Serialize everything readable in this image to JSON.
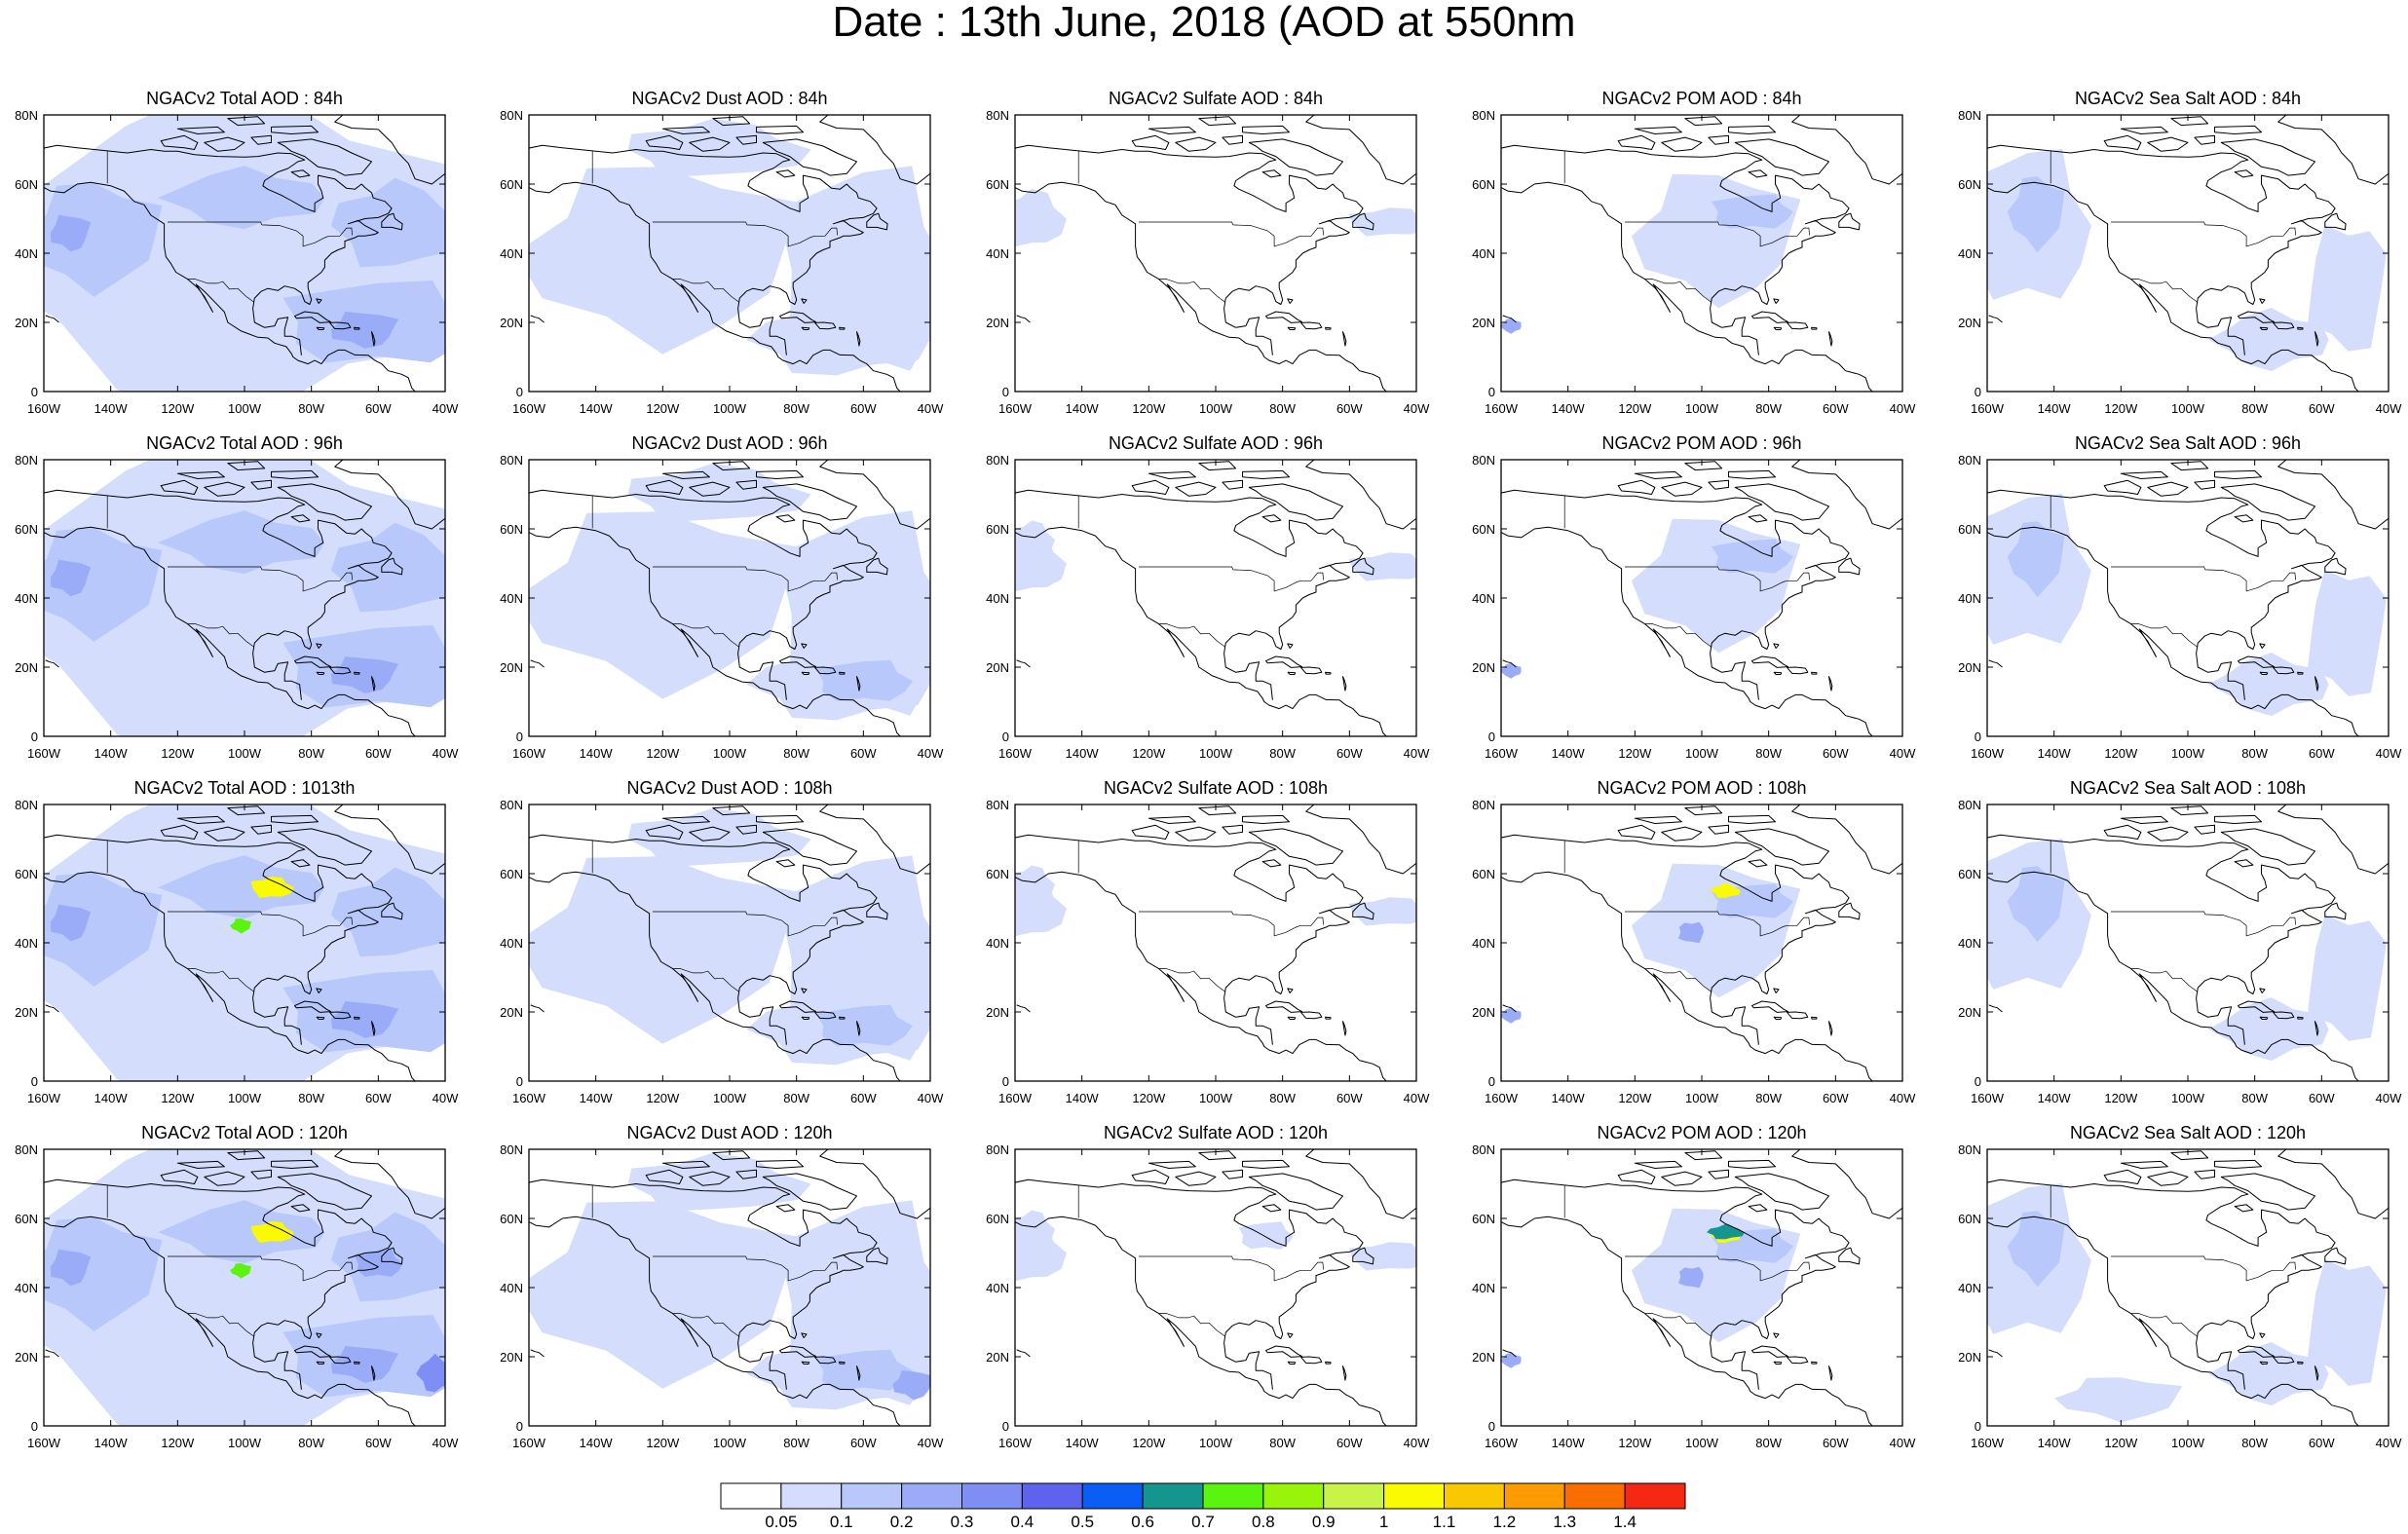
{
  "title": "Date : 13th June, 2018 (AOD at 550nm",
  "panels": [
    [
      "NGACv2 Total AOD : 84h",
      "NGACv2 Dust AOD : 84h",
      "NGACv2 Sulfate AOD : 84h",
      "NGACv2 POM AOD : 84h",
      "NGACv2 Sea Salt AOD : 84h"
    ],
    [
      "NGACv2 Total AOD : 96h",
      "NGACv2 Dust AOD : 96h",
      "NGACv2 Sulfate AOD : 96h",
      "NGACv2 POM AOD : 96h",
      "NGACv2 Sea Salt AOD : 96h"
    ],
    [
      "NGACv2 Total AOD : 1013th",
      "NGACv2 Dust AOD : 108h",
      "NGACv2 Sulfate AOD : 108h",
      "NGACv2 POM AOD : 108h",
      "NGACv2 Sea Salt AOD : 108h"
    ],
    [
      "NGACv2 Total AOD : 120h",
      "NGACv2 Dust AOD : 120h",
      "NGACv2 Sulfate AOD : 120h",
      "NGACv2 POM AOD : 120h",
      "NGACv2 Sea Salt  AOD : 120h"
    ]
  ],
  "chart_data": {
    "type": "heatmap",
    "title": "Date : 13th June, 2018 (AOD at 550nm",
    "map_projection": "cylindrical equidistant",
    "x_ticks": [
      "160W",
      "140W",
      "120W",
      "100W",
      "80W",
      "60W",
      "40W"
    ],
    "y_ticks": [
      "0",
      "20N",
      "40N",
      "60N",
      "80N"
    ],
    "xlim": [
      -160,
      -40
    ],
    "ylim": [
      0,
      80
    ],
    "colorbar": {
      "levels": [
        "0.05",
        "0.1",
        "0.2",
        "0.3",
        "0.4",
        "0.5",
        "0.6",
        "0.7",
        "0.8",
        "0.9",
        "1",
        "1.1",
        "1.2",
        "1.3",
        "1.4"
      ],
      "colors": [
        "#ffffff",
        "#d4defc",
        "#b8c8fa",
        "#9aacf8",
        "#7e8ef5",
        "#5c64ee",
        "#0a5ef5",
        "#14968e",
        "#5af40e",
        "#98f40a",
        "#c8f44a",
        "#fafa00",
        "#fac800",
        "#fa9c00",
        "#fa6e00",
        "#f52814"
      ],
      "placement": "bottom"
    }
  }
}
